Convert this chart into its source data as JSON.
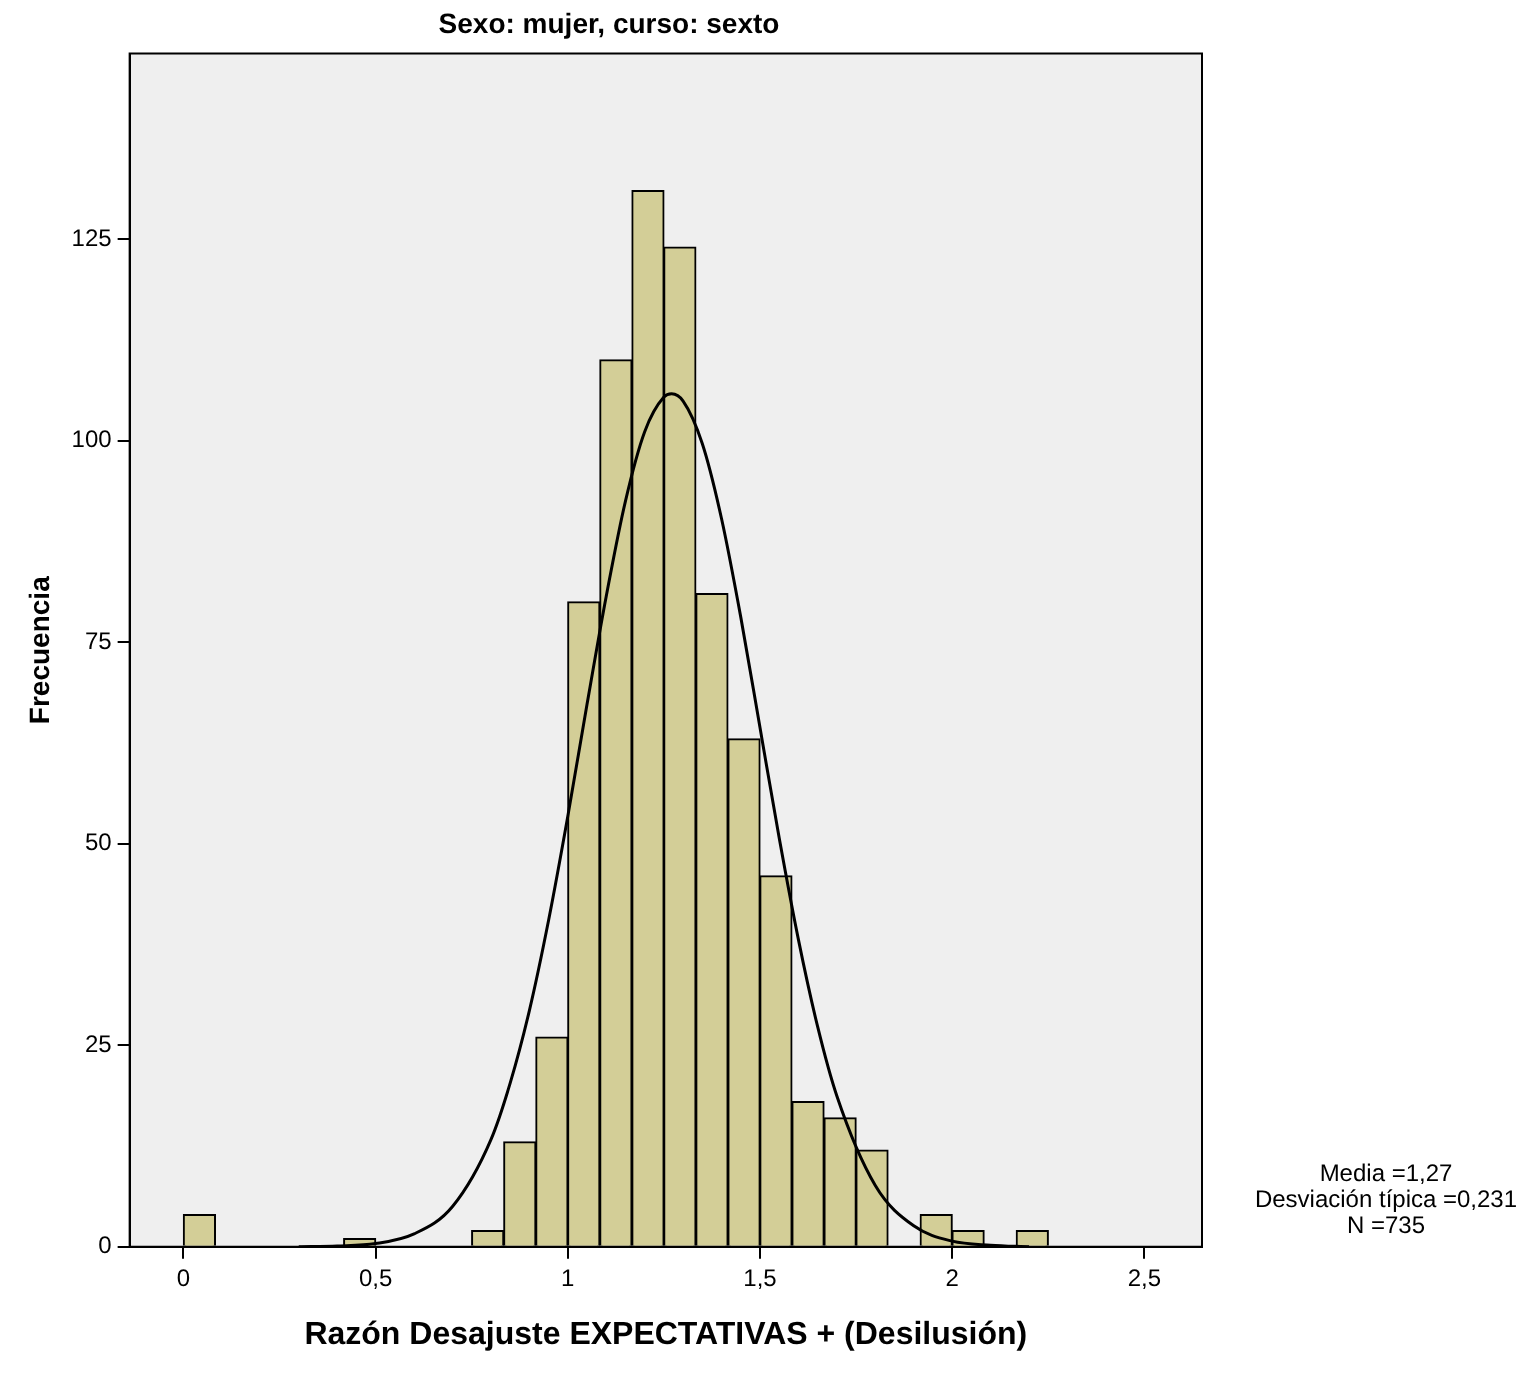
{
  "chart_data": {
    "type": "histogram",
    "title": "Sexo: mujer, curso: sexto",
    "xlabel": "Razón Desajuste EXPECTATIVAS + (Desilusión)",
    "ylabel": "Frecuencia",
    "bins": [
      0,
      0.083,
      0.167,
      0.25,
      0.333,
      0.417,
      0.5,
      0.583,
      0.667,
      0.75,
      0.833,
      0.917,
      1,
      1.083,
      1.167,
      1.25,
      1.333,
      1.417,
      1.5,
      1.583,
      1.667,
      1.75,
      1.833,
      1.917,
      2,
      2.083,
      2.167,
      2.25
    ],
    "values": [
      4,
      0,
      0,
      0,
      0,
      1,
      0,
      0,
      0,
      2,
      13,
      26,
      80,
      110,
      131,
      124,
      81,
      63,
      46,
      18,
      16,
      12,
      0,
      4,
      2,
      0,
      2
    ],
    "color": "#d3ce97",
    "series": [
      {
        "type": "line",
        "color": "#000000",
        "x": [
          0.3,
          0.4,
          0.5,
          0.6,
          0.7,
          0.8,
          0.85,
          0.9,
          0.95,
          1.0,
          1.05,
          1.1,
          1.15,
          1.2,
          1.25,
          1.27,
          1.3,
          1.35,
          1.4,
          1.45,
          1.5,
          1.55,
          1.6,
          1.65,
          1.7,
          1.8,
          1.9,
          2.0,
          2.1,
          2.2
        ],
        "values": [
          0,
          0.1,
          0.4,
          1.6,
          5.0,
          13.3,
          20.3,
          29.3,
          40.5,
          53.4,
          67.3,
          80.7,
          92.5,
          101.1,
          105.4,
          105.8,
          104.9,
          99.6,
          90.3,
          78.1,
          64.4,
          50.7,
          38.1,
          27.3,
          18.7,
          7.6,
          2.6,
          0.7,
          0.2,
          0
        ]
      }
    ],
    "xlim": [
      -0.14,
      2.65
    ],
    "xticks": [
      0,
      {
        "value": 0.5,
        "label": "0,5"
      },
      1,
      {
        "value": 1.5,
        "label": "1,5"
      },
      2,
      {
        "value": 2.5,
        "label": "2,5"
      }
    ],
    "ylim": [
      0,
      148
    ],
    "yticks": [
      0,
      25,
      50,
      75,
      100,
      125
    ],
    "grid": false,
    "legend": false,
    "marker": "none",
    "line_style": "solid",
    "annotations": [
      "Media =1,27",
      "Desviación típica =0,231",
      "N =735"
    ]
  }
}
